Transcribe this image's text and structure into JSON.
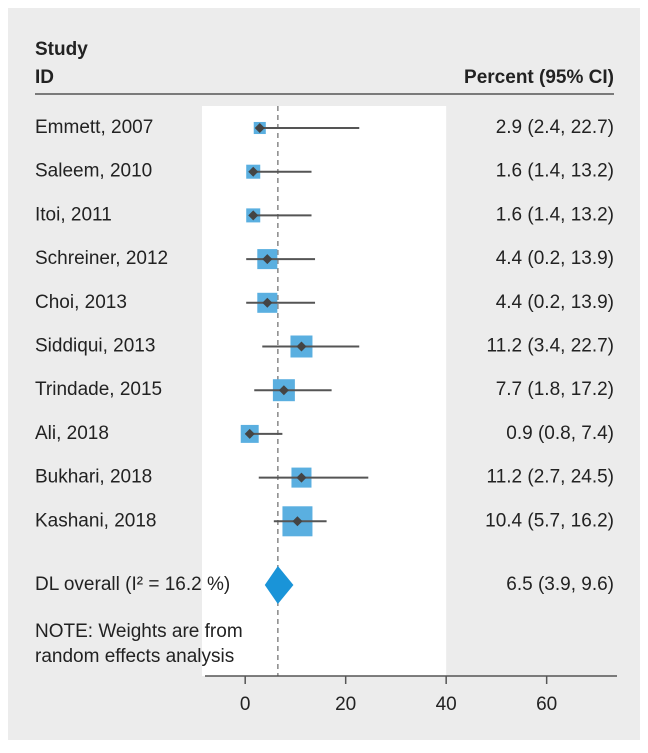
{
  "chart_data": {
    "type": "forest",
    "study_header": [
      "Study",
      "ID"
    ],
    "ci_header": "Percent (95% CI)",
    "categories": [
      "Emmett, 2007",
      "Saleem, 2010",
      "Itoi, 2011",
      "Schreiner, 2012",
      "Choi, 2013",
      "Siddiqui, 2013",
      "Trindade, 2015",
      "Ali, 2018",
      "Bukhari, 2018",
      "Kashani, 2018"
    ],
    "values": [
      2.9,
      1.6,
      1.6,
      4.4,
      4.4,
      11.2,
      7.7,
      0.9,
      11.2,
      10.4
    ],
    "lower": [
      2.4,
      1.4,
      1.4,
      0.2,
      0.2,
      3.4,
      1.8,
      0.8,
      2.7,
      5.7
    ],
    "upper": [
      22.7,
      13.2,
      13.2,
      13.9,
      13.9,
      22.7,
      17.2,
      7.4,
      24.5,
      16.2
    ],
    "weights": [
      3.7,
      5.0,
      5.0,
      10.2,
      10.2,
      12.3,
      12.3,
      8.2,
      10.2,
      22.9
    ],
    "value_labels": [
      "2.9 (2.4, 22.7)",
      "1.6 (1.4, 13.2)",
      "1.6 (1.4, 13.2)",
      "4.4 (0.2, 13.9)",
      "4.4 (0.2, 13.9)",
      "11.2 (3.4, 22.7)",
      "7.7 (1.8, 17.2)",
      "0.9 (0.8, 7.4)",
      "11.2 (2.7, 24.5)",
      "10.4 (5.7, 16.2)"
    ],
    "overall": {
      "name": "DL overall (I² = 16.2 %)",
      "value": 6.5,
      "lower": 3.9,
      "upper": 9.6,
      "label": "6.5 (3.9, 9.6)"
    },
    "note": [
      "NOTE: Weights are from",
      "random effects analysis"
    ],
    "box_color": "#5aafe0",
    "diamond_color": "#1a94d8",
    "xlim": [
      -8,
      74
    ],
    "xticks": [
      0,
      20,
      40,
      60
    ]
  }
}
